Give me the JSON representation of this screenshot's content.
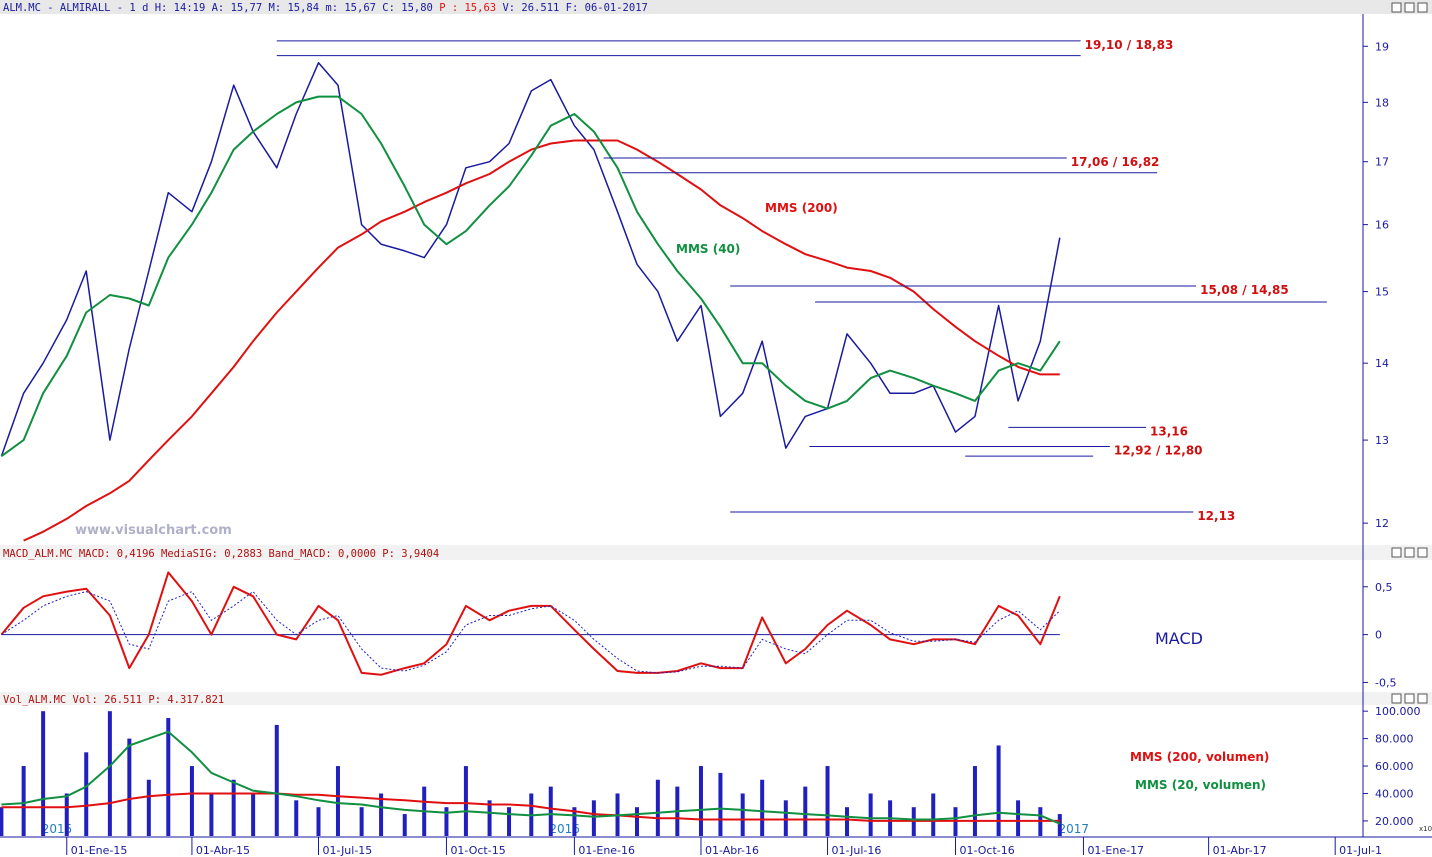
{
  "header": {
    "main": "ALM.MC - ALMIRALL -  1 d H: 14:19 A: 15,77 M: 15,84 m: 15,67 C: 15,80",
    "highlight": "P : 15,63",
    "rest": "V: 26.511  F: 06-01-2017"
  },
  "watermark": "www.visualchart.com",
  "chart_data": [
    {
      "type": "line",
      "log_scale": true,
      "xlim": [
        "2014-11-14",
        "2017-07-21"
      ],
      "ylim": [
        11.75,
        19.6
      ],
      "yticks": [
        12,
        13,
        14,
        15,
        16,
        17,
        18,
        19
      ],
      "x": [
        "2014-11-15",
        "2014-12-01",
        "2014-12-15",
        "2015-01-01",
        "2015-01-15",
        "2015-02-01",
        "2015-02-15",
        "2015-03-01",
        "2015-03-15",
        "2015-04-01",
        "2015-04-15",
        "2015-05-01",
        "2015-05-15",
        "2015-06-01",
        "2015-06-15",
        "2015-07-01",
        "2015-07-15",
        "2015-08-01",
        "2015-08-15",
        "2015-09-01",
        "2015-09-15",
        "2015-10-01",
        "2015-10-15",
        "2015-11-01",
        "2015-11-15",
        "2015-12-01",
        "2015-12-15",
        "2016-01-01",
        "2016-01-15",
        "2016-02-01",
        "2016-02-15",
        "2016-03-01",
        "2016-03-15",
        "2016-04-01",
        "2016-04-15",
        "2016-05-01",
        "2016-05-15",
        "2016-06-01",
        "2016-06-15",
        "2016-07-01",
        "2016-07-15",
        "2016-08-01",
        "2016-08-15",
        "2016-09-01",
        "2016-09-15",
        "2016-10-01",
        "2016-10-15",
        "2016-11-01",
        "2016-11-15",
        "2016-12-01",
        "2016-12-15"
      ],
      "series": [
        {
          "color": "#1a1aa0",
          "values": [
            12.8,
            13.6,
            14.0,
            14.6,
            15.3,
            13.0,
            14.2,
            15.3,
            16.5,
            16.2,
            17.0,
            18.3,
            17.5,
            16.9,
            17.8,
            18.7,
            18.3,
            16.0,
            15.7,
            15.6,
            15.5,
            16.0,
            16.9,
            17.0,
            17.3,
            18.2,
            18.4,
            17.6,
            17.2,
            16.2,
            15.4,
            15.0,
            14.3,
            14.8,
            13.3,
            13.6,
            14.3,
            12.9,
            13.3,
            13.4,
            14.4,
            14.0,
            13.6,
            13.6,
            13.7,
            13.1,
            13.3,
            14.8,
            13.5,
            14.3,
            15.8
          ]
        },
        {
          "name": "MMS (200)",
          "color": "#e01010",
          "values": [
            null,
            11.8,
            11.9,
            12.05,
            12.2,
            12.35,
            12.5,
            12.75,
            13.0,
            13.3,
            13.6,
            13.95,
            14.3,
            14.7,
            15.0,
            15.35,
            15.65,
            15.85,
            16.05,
            16.2,
            16.35,
            16.5,
            16.65,
            16.8,
            17.0,
            17.2,
            17.3,
            17.35,
            17.35,
            17.35,
            17.2,
            17.0,
            16.8,
            16.55,
            16.3,
            16.1,
            15.9,
            15.7,
            15.55,
            15.45,
            15.35,
            15.3,
            15.2,
            15.0,
            14.75,
            14.5,
            14.3,
            14.1,
            13.95,
            13.85,
            13.85
          ]
        },
        {
          "name": "MMS (40)",
          "color": "#109040",
          "values": [
            12.8,
            13.0,
            13.6,
            14.1,
            14.7,
            14.95,
            14.9,
            14.8,
            15.5,
            16.0,
            16.5,
            17.2,
            17.5,
            17.8,
            18.0,
            18.1,
            18.1,
            17.8,
            17.3,
            16.6,
            16.0,
            15.7,
            15.9,
            16.3,
            16.6,
            17.1,
            17.6,
            17.8,
            17.5,
            16.9,
            16.2,
            15.7,
            15.3,
            14.9,
            14.5,
            14.0,
            14.0,
            13.7,
            13.5,
            13.4,
            13.5,
            13.8,
            13.9,
            13.8,
            13.7,
            13.6,
            13.5,
            13.9,
            14.0,
            13.9,
            14.3
          ]
        }
      ],
      "levels": [
        {
          "label": "19,10 / 18,83",
          "lines": [
            {
              "value": 19.1,
              "from": "2015-06-01",
              "to": "2016-12-30"
            },
            {
              "value": 18.83,
              "from": "2015-06-01",
              "to": "2016-12-30"
            }
          ]
        },
        {
          "label": "17,06 / 16,82",
          "lines": [
            {
              "value": 17.06,
              "from": "2016-01-22",
              "to": "2016-12-20"
            },
            {
              "value": 16.82,
              "from": "2016-02-04",
              "to": "2017-02-23"
            }
          ]
        },
        {
          "label": "15,08 / 14,85",
          "lines": [
            {
              "value": 15.08,
              "from": "2016-04-22",
              "to": "2017-03-23"
            },
            {
              "value": 14.85,
              "from": "2016-06-22",
              "to": "2017-06-25"
            }
          ]
        },
        {
          "label": "13,16",
          "lines": [
            {
              "value": 13.16,
              "from": "2016-11-08",
              "to": "2017-02-15"
            }
          ]
        },
        {
          "label": "12,92 / 12,80",
          "lines": [
            {
              "value": 12.92,
              "from": "2016-06-18",
              "to": "2017-01-20"
            },
            {
              "value": 12.8,
              "from": "2016-10-08",
              "to": "2017-01-08"
            }
          ]
        },
        {
          "label": "12,13",
          "lines": [
            {
              "value": 12.13,
              "from": "2016-04-22",
              "to": "2017-03-21"
            }
          ]
        }
      ]
    },
    {
      "type": "line",
      "title": "MACD_ALM.MC MACD: 0,4196 MediaSIG: 0,2883 Band_MACD: 0,0000 P: 3,9404",
      "xlim": [
        "2014-11-14",
        "2017-07-21"
      ],
      "ylim": [
        -0.6,
        0.78
      ],
      "yticks": [
        {
          "value": 0.5,
          "label": "0,5"
        },
        0,
        {
          "value": -0.5,
          "label": "-0,5"
        }
      ],
      "zero_line": true,
      "x": [
        "2014-11-15",
        "2014-12-01",
        "2014-12-15",
        "2015-01-01",
        "2015-01-15",
        "2015-02-01",
        "2015-02-15",
        "2015-03-01",
        "2015-03-15",
        "2015-04-01",
        "2015-04-15",
        "2015-05-01",
        "2015-05-15",
        "2015-06-01",
        "2015-06-15",
        "2015-07-01",
        "2015-07-15",
        "2015-08-01",
        "2015-08-15",
        "2015-09-01",
        "2015-09-15",
        "2015-10-01",
        "2015-10-15",
        "2015-11-01",
        "2015-11-15",
        "2015-12-01",
        "2015-12-15",
        "2016-01-01",
        "2016-01-15",
        "2016-02-01",
        "2016-02-15",
        "2016-03-01",
        "2016-03-15",
        "2016-04-01",
        "2016-04-15",
        "2016-05-01",
        "2016-05-15",
        "2016-06-01",
        "2016-06-15",
        "2016-07-01",
        "2016-07-15",
        "2016-08-01",
        "2016-08-15",
        "2016-09-01",
        "2016-09-15",
        "2016-10-01",
        "2016-10-15",
        "2016-11-01",
        "2016-11-15",
        "2016-12-01",
        "2016-12-15"
      ],
      "series": [
        {
          "name": "MACD",
          "color": "#e01010",
          "values": [
            0.0,
            0.28,
            0.4,
            0.45,
            0.48,
            0.2,
            -0.35,
            0.0,
            0.65,
            0.35,
            0.0,
            0.5,
            0.4,
            0.0,
            -0.05,
            0.3,
            0.15,
            -0.4,
            -0.42,
            -0.35,
            -0.3,
            -0.1,
            0.3,
            0.15,
            0.25,
            0.3,
            0.3,
            0.05,
            -0.15,
            -0.38,
            -0.4,
            -0.4,
            -0.38,
            -0.3,
            -0.35,
            -0.35,
            0.18,
            -0.3,
            -0.15,
            0.1,
            0.25,
            0.1,
            -0.05,
            -0.1,
            -0.05,
            -0.05,
            -0.1,
            0.3,
            0.2,
            -0.1,
            0.4
          ]
        },
        {
          "color": "#2020c0",
          "dashed": true,
          "values": [
            0.0,
            0.15,
            0.3,
            0.4,
            0.45,
            0.35,
            -0.1,
            -0.15,
            0.35,
            0.45,
            0.15,
            0.3,
            0.45,
            0.15,
            0.0,
            0.15,
            0.2,
            -0.15,
            -0.35,
            -0.38,
            -0.32,
            -0.18,
            0.1,
            0.2,
            0.2,
            0.27,
            0.3,
            0.15,
            -0.05,
            -0.25,
            -0.38,
            -0.4,
            -0.39,
            -0.33,
            -0.33,
            -0.35,
            -0.05,
            -0.15,
            -0.2,
            0.0,
            0.15,
            0.15,
            0.02,
            -0.07,
            -0.07,
            -0.05,
            -0.08,
            0.15,
            0.25,
            0.05,
            0.25
          ]
        }
      ]
    },
    {
      "type": "bar",
      "title": "Vol_ALM.MC Vol: 26.511 P: 4.317.821",
      "xlim": [
        "2014-11-14",
        "2017-07-21"
      ],
      "xticks": [
        {
          "value": "2015-01-01",
          "label": "01-Ene-15"
        },
        {
          "value": "2015-04-01",
          "label": "01-Abr-15"
        },
        {
          "value": "2015-07-01",
          "label": "01-Jul-15"
        },
        {
          "value": "2015-10-01",
          "label": "01-Oct-15"
        },
        {
          "value": "2016-01-01",
          "label": "01-Ene-16"
        },
        {
          "value": "2016-04-01",
          "label": "01-Abr-16"
        },
        {
          "value": "2016-07-01",
          "label": "01-Jul-16"
        },
        {
          "value": "2016-10-01",
          "label": "01-Oct-16"
        },
        {
          "value": "2017-01-01",
          "label": "01-Ene-17"
        },
        {
          "value": "2017-04-01",
          "label": "01-Abr-17"
        },
        {
          "value": "2017-07-01",
          "label": "01-Jul-1"
        }
      ],
      "year_labels": [
        "2015",
        "2016",
        "2017"
      ],
      "scale_note": "x10",
      "ylim": [
        9000,
        104500
      ],
      "yticks": [
        {
          "value": 100000,
          "label": "100.000"
        },
        {
          "value": 80000,
          "label": "80.000"
        },
        {
          "value": 60000,
          "label": "60.000"
        },
        {
          "value": 40000,
          "label": "40.000"
        },
        {
          "value": 20000,
          "label": "20.000"
        }
      ],
      "x": [
        "2014-11-15",
        "2014-12-01",
        "2014-12-15",
        "2015-01-01",
        "2015-01-15",
        "2015-02-01",
        "2015-02-15",
        "2015-03-01",
        "2015-03-15",
        "2015-04-01",
        "2015-04-15",
        "2015-05-01",
        "2015-05-15",
        "2015-06-01",
        "2015-06-15",
        "2015-07-01",
        "2015-07-15",
        "2015-08-01",
        "2015-08-15",
        "2015-09-01",
        "2015-09-15",
        "2015-10-01",
        "2015-10-15",
        "2015-11-01",
        "2015-11-15",
        "2015-12-01",
        "2015-12-15",
        "2016-01-01",
        "2016-01-15",
        "2016-02-01",
        "2016-02-15",
        "2016-03-01",
        "2016-03-15",
        "2016-04-01",
        "2016-04-15",
        "2016-05-01",
        "2016-05-15",
        "2016-06-01",
        "2016-06-15",
        "2016-07-01",
        "2016-07-15",
        "2016-08-01",
        "2016-08-15",
        "2016-09-01",
        "2016-09-15",
        "2016-10-01",
        "2016-10-15",
        "2016-11-01",
        "2016-11-15",
        "2016-12-01",
        "2016-12-15"
      ],
      "series": [
        {
          "color": "#2020c0",
          "values": [
            30000,
            60000,
            100000,
            40000,
            70000,
            100000,
            80000,
            50000,
            95000,
            60000,
            40000,
            50000,
            40000,
            90000,
            35000,
            30000,
            60000,
            30000,
            40000,
            25000,
            45000,
            30000,
            60000,
            35000,
            30000,
            40000,
            45000,
            30000,
            35000,
            40000,
            30000,
            50000,
            45000,
            60000,
            55000,
            40000,
            50000,
            35000,
            45000,
            60000,
            30000,
            40000,
            35000,
            30000,
            40000,
            30000,
            60000,
            75000,
            35000,
            30000,
            25000
          ]
        },
        {
          "name": "MMS (200, volumen)",
          "color": "#e01010",
          "values": [
            30000,
            30000,
            30000,
            30000,
            31000,
            33000,
            36000,
            38000,
            39000,
            40000,
            40000,
            40000,
            40000,
            40000,
            39000,
            39000,
            38000,
            37000,
            36000,
            35000,
            34000,
            33000,
            33000,
            32000,
            32000,
            31000,
            29000,
            27000,
            25000,
            24000,
            23000,
            22000,
            22000,
            21000,
            21000,
            21000,
            21000,
            21000,
            21000,
            21000,
            21000,
            20000,
            20000,
            20000,
            20000,
            20000,
            20000,
            20000,
            20000,
            20000,
            20000
          ]
        },
        {
          "name": "MMS (20, volumen)",
          "color": "#109040",
          "values": [
            32000,
            33000,
            36000,
            38000,
            45000,
            60000,
            75000,
            80000,
            85000,
            70000,
            55000,
            48000,
            42000,
            40000,
            38000,
            35000,
            33000,
            32000,
            30000,
            28000,
            27000,
            26000,
            27000,
            26000,
            25000,
            24000,
            25000,
            24000,
            23000,
            24000,
            25000,
            26000,
            27000,
            28000,
            29000,
            28000,
            27000,
            26000,
            25000,
            24000,
            23000,
            22000,
            22000,
            21000,
            21000,
            22000,
            24000,
            26000,
            25000,
            24000,
            18000
          ]
        }
      ]
    }
  ]
}
